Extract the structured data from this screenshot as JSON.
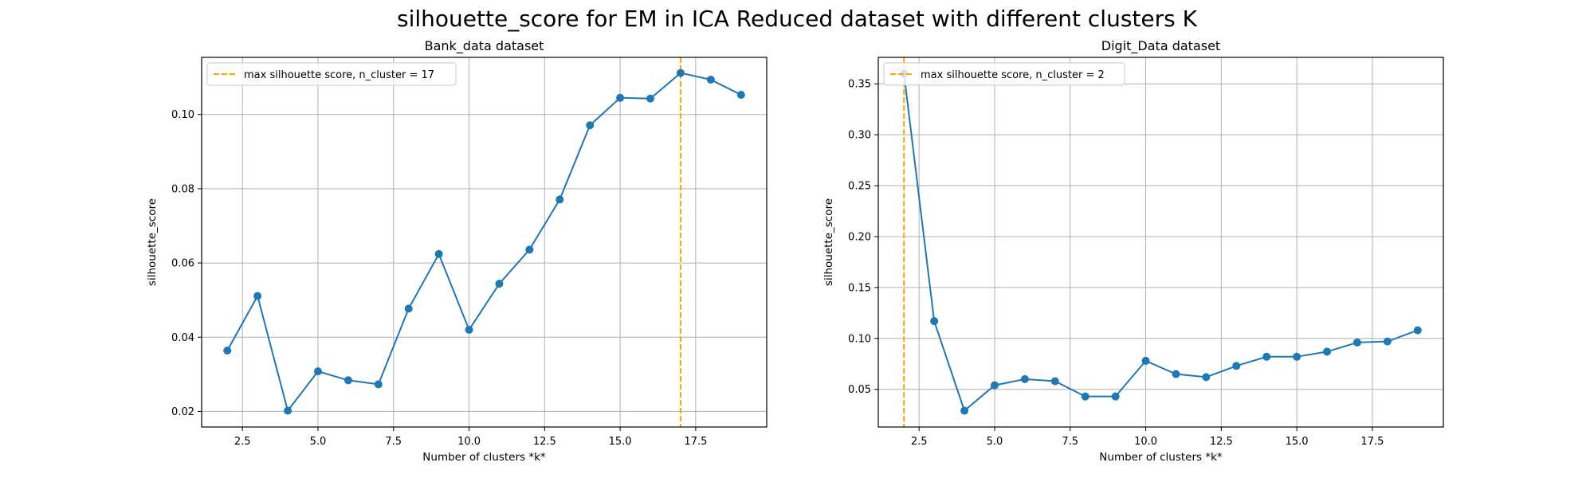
{
  "figure": {
    "suptitle": "silhouette_score for EM in ICA Reduced dataset with different clusters K"
  },
  "colors": {
    "series": "#1f77b4",
    "max_line": "#ffa500",
    "grid": "#b0b0b0",
    "axes": "#000000"
  },
  "chart_data": [
    {
      "type": "line",
      "title": "Bank_data dataset",
      "xlabel": "Number of clusters *k*",
      "ylabel": "silhouette_score",
      "grid": true,
      "legend_position": "top-left",
      "xlim": [
        1.15,
        19.85
      ],
      "ylim": [
        0.0158,
        0.1154
      ],
      "xticks": [
        2.5,
        5.0,
        7.5,
        10.0,
        12.5,
        15.0,
        17.5
      ],
      "xtick_labels": [
        "2.5",
        "5.0",
        "7.5",
        "10.0",
        "12.5",
        "15.0",
        "17.5"
      ],
      "yticks": [
        0.02,
        0.04,
        0.06,
        0.08,
        0.1
      ],
      "ytick_labels": [
        "0.02",
        "0.04",
        "0.06",
        "0.08",
        "0.10"
      ],
      "x": [
        2,
        3,
        4,
        5,
        6,
        7,
        8,
        9,
        10,
        11,
        12,
        13,
        14,
        15,
        16,
        17,
        18,
        19
      ],
      "y": [
        0.0364,
        0.0511,
        0.0202,
        0.0308,
        0.0284,
        0.0273,
        0.0477,
        0.0624,
        0.042,
        0.0544,
        0.0636,
        0.0771,
        0.0971,
        0.1045,
        0.1043,
        0.1112,
        0.1094,
        0.1053
      ],
      "vline": {
        "x": 17,
        "label": "max silhouette score, n_cluster = 17"
      }
    },
    {
      "type": "line",
      "title": "Digit_Data dataset",
      "xlabel": "Number of clusters *k*",
      "ylabel": "silhouette_score",
      "grid": true,
      "legend_position": "top-left",
      "xlim": [
        1.15,
        19.85
      ],
      "ylim": [
        0.013,
        0.376
      ],
      "xticks": [
        2.5,
        5.0,
        7.5,
        10.0,
        12.5,
        15.0,
        17.5
      ],
      "xtick_labels": [
        "2.5",
        "5.0",
        "7.5",
        "10.0",
        "12.5",
        "15.0",
        "17.5"
      ],
      "yticks": [
        0.05,
        0.1,
        0.15,
        0.2,
        0.25,
        0.3,
        0.35
      ],
      "ytick_labels": [
        "0.05",
        "0.10",
        "0.15",
        "0.20",
        "0.25",
        "0.30",
        "0.35"
      ],
      "x": [
        2,
        3,
        4,
        5,
        6,
        7,
        8,
        9,
        10,
        11,
        12,
        13,
        14,
        15,
        16,
        17,
        18,
        19
      ],
      "y": [
        0.36,
        0.117,
        0.029,
        0.054,
        0.06,
        0.058,
        0.043,
        0.043,
        0.078,
        0.065,
        0.062,
        0.073,
        0.082,
        0.082,
        0.087,
        0.096,
        0.097,
        0.108
      ],
      "vline": {
        "x": 2,
        "label": "max silhouette score, n_cluster = 2"
      }
    }
  ]
}
